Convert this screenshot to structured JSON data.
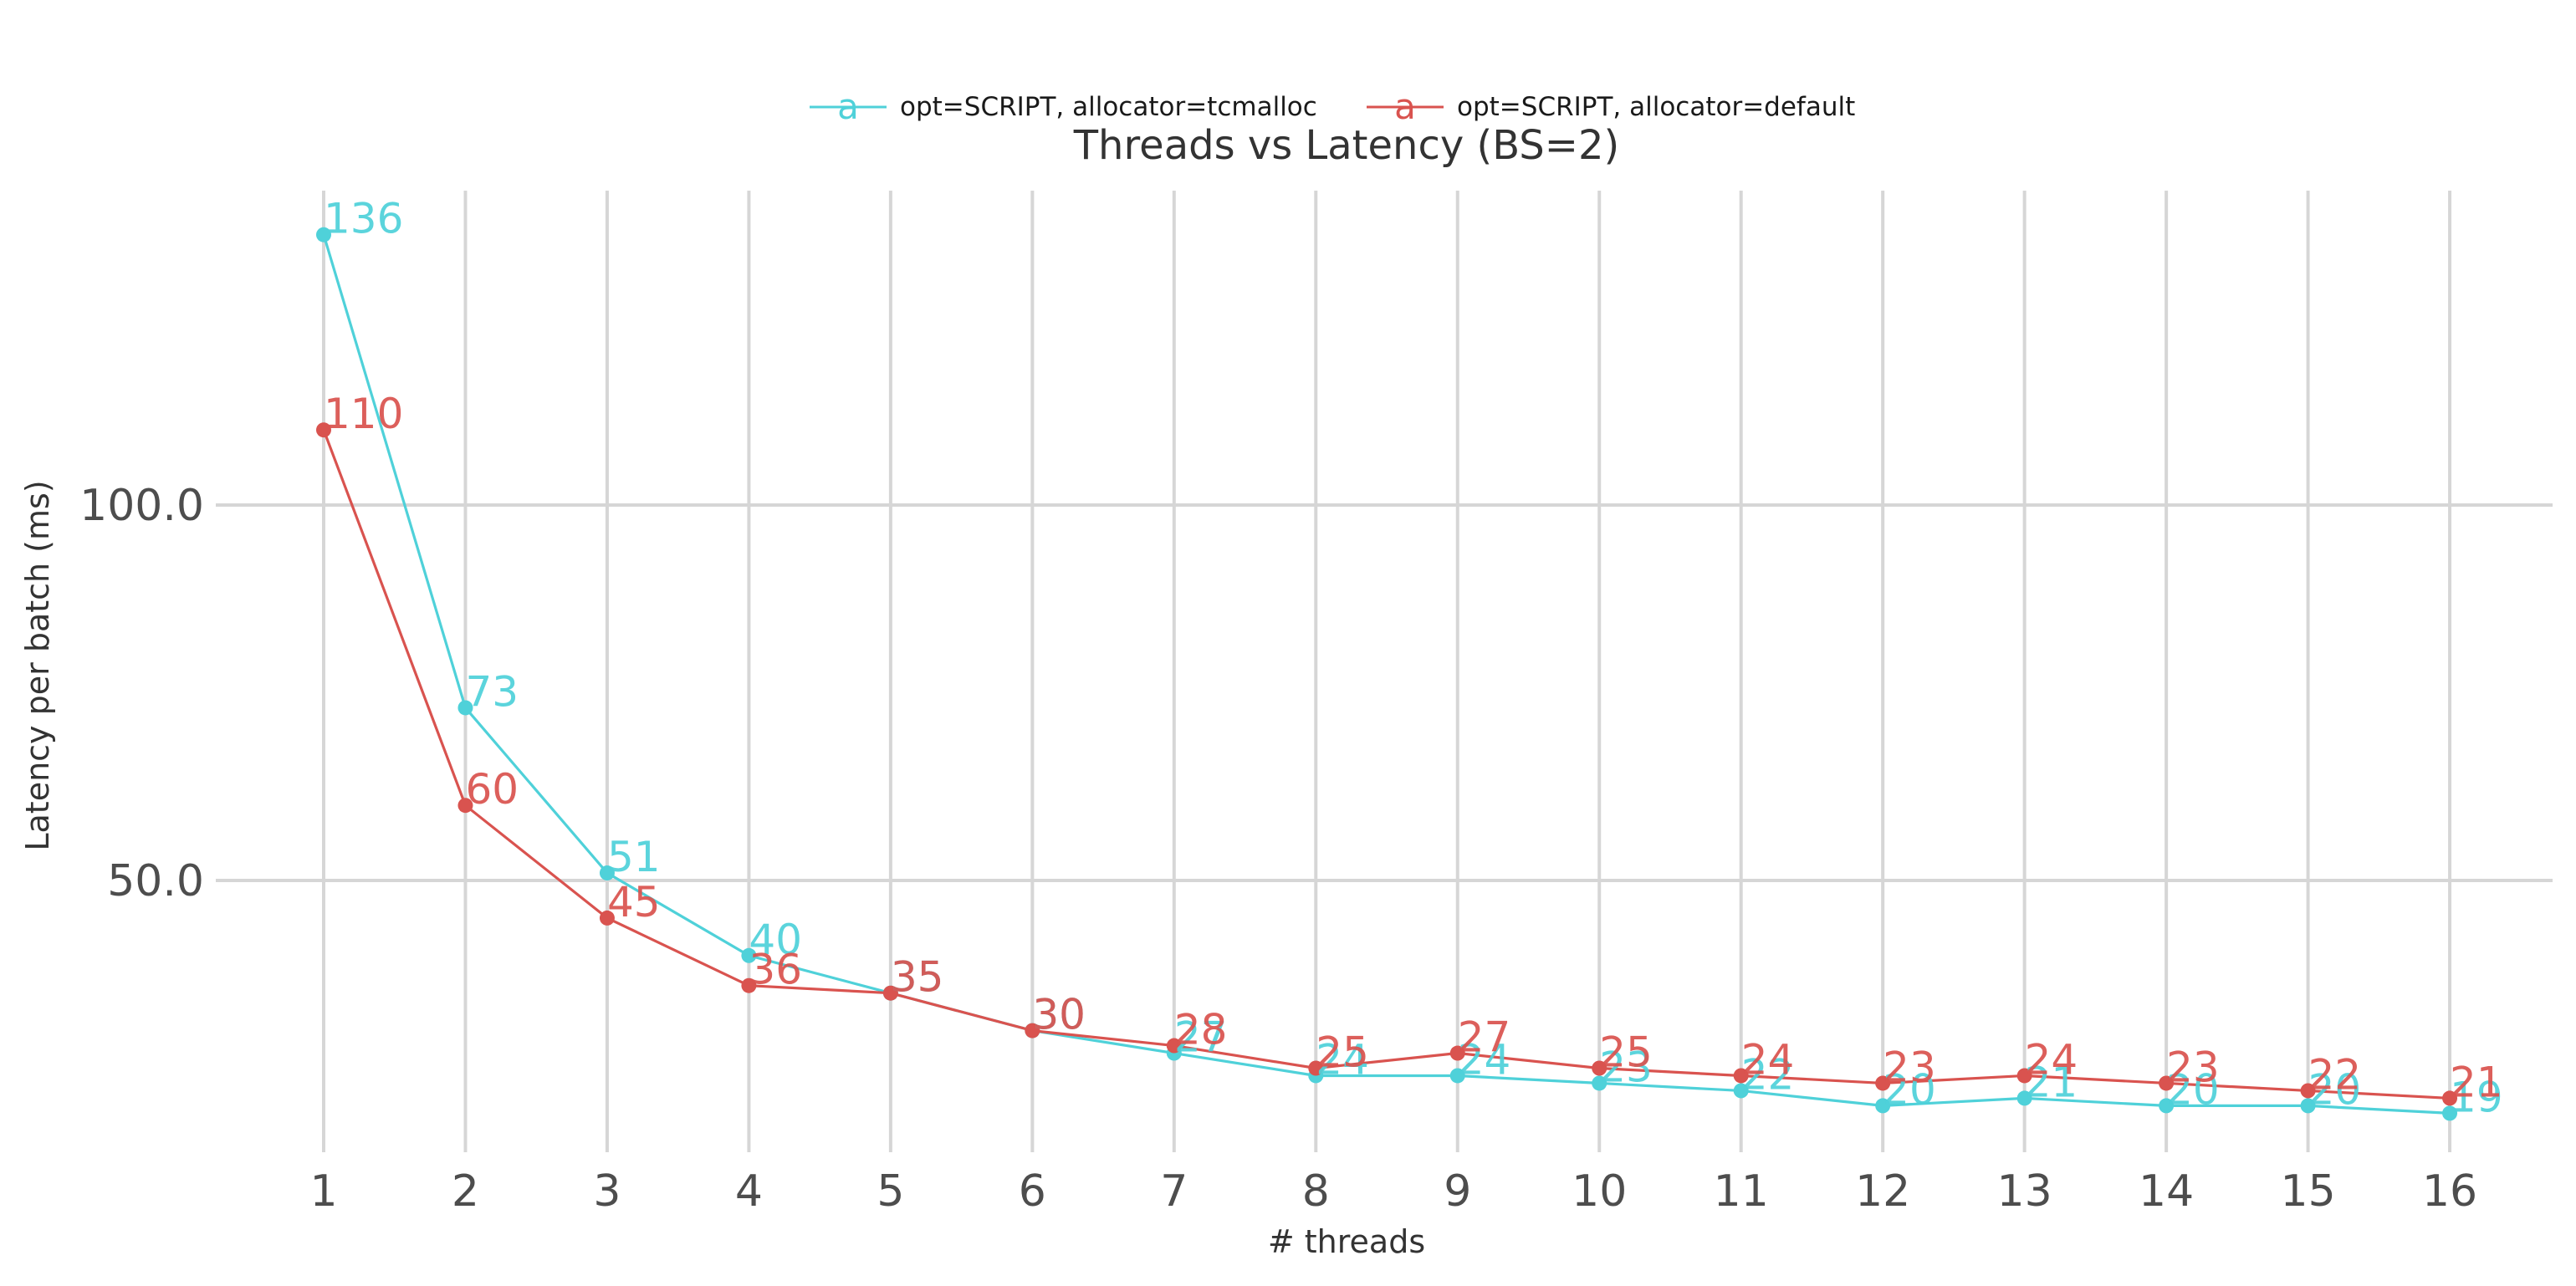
{
  "chart_data": {
    "type": "line",
    "title": "Threads vs Latency (BS=2)",
    "xlabel": "# threads",
    "ylabel": "Latency per batch (ms)",
    "x": [
      1,
      2,
      3,
      4,
      5,
      6,
      7,
      8,
      9,
      10,
      11,
      12,
      13,
      14,
      15,
      16
    ],
    "xlim": [
      0.28,
      16.75
    ],
    "ylim": [
      12.5,
      143
    ],
    "y_ticks": [
      50.0,
      100.0
    ],
    "y_tick_labels": [
      "50.0",
      "100.0"
    ],
    "grid": true,
    "legend_position": "top-center",
    "legend_glyph": "a",
    "series": [
      {
        "name": "opt=SCRIPT, allocator=tcmalloc",
        "color": "#4fd1d9",
        "values": [
          136,
          73,
          51,
          40,
          35,
          30,
          27,
          24,
          24,
          23,
          22,
          20,
          21,
          20,
          20,
          19
        ],
        "labels": [
          "136",
          "73",
          "51",
          "40",
          "35",
          "30",
          "27",
          "24",
          "24",
          "23",
          "22",
          "20",
          "21",
          "20",
          "20",
          "19"
        ]
      },
      {
        "name": "opt=SCRIPT, allocator=default",
        "color": "#d9534f",
        "values": [
          110,
          60,
          45,
          36,
          35,
          30,
          28,
          25,
          27,
          25,
          24,
          23,
          24,
          23,
          22,
          21
        ],
        "labels": [
          "110",
          "60",
          "45",
          "36",
          "35",
          "30",
          "28",
          "25",
          "27",
          "25",
          "24",
          "23",
          "24",
          "23",
          "22",
          "21"
        ]
      }
    ]
  }
}
